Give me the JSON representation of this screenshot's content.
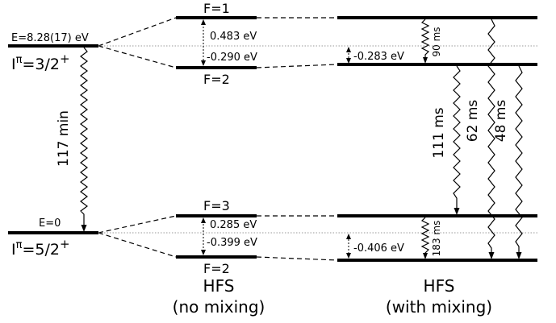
{
  "isomer": {
    "energy_label": "E=8.28(17) eV",
    "spin_parity_I": "I",
    "spin_parity_pi": "π",
    "spin_parity_value": "=3/2",
    "spin_parity_sign": "+"
  },
  "ground": {
    "energy_label": "E=0",
    "spin_parity_I": "I",
    "spin_parity_pi": "π",
    "spin_parity_value": "=5/2",
    "spin_parity_sign": "+"
  },
  "isomer_decay_label": "117 min",
  "no_mixing": {
    "title_line1": "HFS",
    "title_line2": "(no mixing)",
    "upper": {
      "top_state": "F=1",
      "bottom_state": "F=2",
      "shift_up": "0.483 eV",
      "shift_down": "-0.290 eV"
    },
    "lower": {
      "top_state": "F=3",
      "bottom_state": "F=2",
      "shift_up": "0.285 eV",
      "shift_down": "-0.399 eV"
    }
  },
  "with_mixing": {
    "title_line1": "HFS",
    "title_line2": "(with mixing)",
    "upper_shift": "-0.283 eV",
    "lower_shift": "-0.406 eV",
    "lifetimes": {
      "upper_internal": "90 ms",
      "lower_internal": "183 ms",
      "upper_F2_to_F3": "111 ms",
      "upper_F1_to_F2": "62 ms",
      "upper_F2_to_F2": "48 ms"
    }
  }
}
